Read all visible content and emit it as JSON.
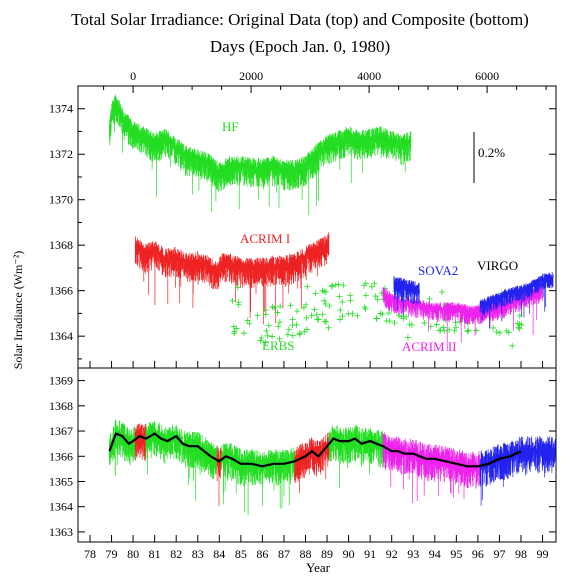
{
  "title_line1": "Total Solar Irradiance: Original Data (top) and Composite (bottom)",
  "title_line2": "Days (Epoch Jan. 0, 1980)",
  "chart_data": [
    {
      "type": "line",
      "panel": "top",
      "ylabel": "Solar Irradiance (Wm⁻²)",
      "ylim": [
        1362.6,
        1375.0
      ],
      "y_ticks": [
        "1374",
        "1372",
        "1370",
        "1368",
        "1366",
        "1364"
      ],
      "y_tick_values": [
        1374,
        1372,
        1370,
        1368,
        1366,
        1364
      ],
      "top_axis_label": "Days (Epoch Jan. 0, 1980)",
      "top_axis_ticks": [
        "0",
        "2000",
        "4000",
        "6000"
      ],
      "top_axis_tick_days": [
        0,
        2000,
        4000,
        6000
      ],
      "scale_bar_label": "0.2%",
      "series": [
        {
          "name": "HF",
          "color": "#22dd22",
          "x": [
            78.9,
            79.0,
            79.2,
            79.5,
            80.0,
            80.5,
            81.0,
            81.5,
            82.0,
            82.5,
            83.0,
            83.5,
            84.0,
            84.5,
            85.0,
            85.5,
            86.0,
            86.5,
            87.0,
            87.5,
            88.0,
            88.5,
            89.0,
            89.5,
            90.0,
            90.5,
            91.0,
            91.5,
            92.0,
            92.5,
            92.9
          ],
          "y": [
            1373.0,
            1373.8,
            1374.3,
            1373.6,
            1373.0,
            1372.8,
            1372.5,
            1372.7,
            1372.3,
            1371.9,
            1371.8,
            1371.6,
            1371.2,
            1371.5,
            1371.5,
            1371.4,
            1371.4,
            1371.5,
            1371.3,
            1371.3,
            1371.5,
            1372.0,
            1372.4,
            1372.6,
            1372.8,
            1372.6,
            1372.7,
            1372.8,
            1372.6,
            1372.4,
            1372.6
          ]
        },
        {
          "name": "ACRIM I",
          "color": "#ee2222",
          "x": [
            80.1,
            80.5,
            81.0,
            81.5,
            82.0,
            82.5,
            83.0,
            83.5,
            83.9,
            84.1,
            84.5,
            85.0,
            85.5,
            86.0,
            86.5,
            87.0,
            87.5,
            88.0,
            88.5,
            89.0,
            89.1
          ],
          "y": [
            1368.0,
            1367.6,
            1367.8,
            1367.4,
            1367.5,
            1367.2,
            1367.3,
            1367.1,
            1366.8,
            1367.2,
            1367.2,
            1367.0,
            1367.0,
            1367.0,
            1367.1,
            1367.1,
            1367.2,
            1367.5,
            1367.8,
            1368.0,
            1368.2
          ]
        },
        {
          "name": "ERBS",
          "color": "#22dd22",
          "marker": "+",
          "x": [
            84.5,
            85.0,
            85.5,
            86.0,
            86.5,
            87.0,
            87.5,
            88.0,
            88.5,
            89.0,
            89.5,
            90.0,
            90.5,
            91.0,
            91.5,
            92.0,
            92.5,
            93.0,
            93.5,
            94.0,
            94.5,
            95.0,
            95.5,
            96.0,
            96.5,
            97.0,
            97.5,
            98.0,
            98.5
          ],
          "y": [
            1364.9,
            1364.7,
            1364.5,
            1364.5,
            1364.5,
            1364.6,
            1364.7,
            1365.0,
            1365.3,
            1365.4,
            1365.5,
            1365.6,
            1365.7,
            1365.6,
            1365.5,
            1365.3,
            1365.2,
            1365.1,
            1365.0,
            1364.9,
            1364.8,
            1364.8,
            1364.8,
            1364.8,
            1364.8,
            1364.9,
            1364.9,
            1365.0,
            1365.2
          ]
        },
        {
          "name": "ACRIM II",
          "color": "#ee22ee",
          "x": [
            91.6,
            92.0,
            92.5,
            93.0,
            93.5,
            94.0,
            94.5,
            95.0,
            95.5,
            96.0,
            96.5,
            97.0,
            97.5,
            98.0,
            98.5,
            99.0
          ],
          "y": [
            1365.9,
            1365.6,
            1365.5,
            1365.4,
            1365.3,
            1365.2,
            1365.2,
            1365.2,
            1365.1,
            1365.1,
            1365.2,
            1365.3,
            1365.5,
            1365.7,
            1365.9,
            1366.1
          ]
        },
        {
          "name": "SOVA2",
          "color": "#2222ee",
          "x": [
            92.1,
            92.5,
            93.0,
            93.3
          ],
          "y": [
            1366.3,
            1366.2,
            1366.1,
            1366.0
          ]
        },
        {
          "name": "VIRGO",
          "color": "#2222ee",
          "x": [
            96.1,
            96.5,
            97.0,
            97.5,
            98.0,
            98.5,
            99.0,
            99.5
          ],
          "y": [
            1365.4,
            1365.5,
            1365.7,
            1365.9,
            1366.0,
            1366.2,
            1366.5,
            1366.6
          ]
        }
      ]
    },
    {
      "type": "line",
      "panel": "bottom",
      "xlabel": "Year",
      "ylim": [
        1362.6,
        1369.5
      ],
      "x_ticks": [
        "78",
        "79",
        "80",
        "81",
        "82",
        "83",
        "84",
        "85",
        "86",
        "87",
        "88",
        "89",
        "90",
        "91",
        "92",
        "93",
        "94",
        "95",
        "96",
        "97",
        "98",
        "99"
      ],
      "y_ticks": [
        "1369",
        "1368",
        "1367",
        "1366",
        "1365",
        "1364",
        "1363"
      ],
      "y_tick_values": [
        1369,
        1368,
        1367,
        1366,
        1365,
        1364,
        1363
      ],
      "segments": [
        {
          "from": 78.9,
          "to": 80.1,
          "color": "#22dd22"
        },
        {
          "from": 80.1,
          "to": 80.6,
          "color": "#ee2222"
        },
        {
          "from": 80.6,
          "to": 83.9,
          "color": "#22dd22"
        },
        {
          "from": 83.9,
          "to": 84.1,
          "color": "#ee2222"
        },
        {
          "from": 84.1,
          "to": 87.5,
          "color": "#22dd22"
        },
        {
          "from": 87.5,
          "to": 89.1,
          "color": "#ee2222"
        },
        {
          "from": 89.1,
          "to": 91.6,
          "color": "#22dd22"
        },
        {
          "from": 91.6,
          "to": 96.1,
          "color": "#ee22ee"
        },
        {
          "from": 96.1,
          "to": 99.6,
          "color": "#2222ee"
        }
      ],
      "composite": {
        "color": "#000000",
        "x": [
          78.9,
          79.2,
          79.5,
          79.8,
          80.0,
          80.3,
          80.6,
          81.0,
          81.3,
          81.6,
          82.0,
          82.3,
          82.6,
          83.0,
          83.3,
          83.6,
          84.0,
          84.3,
          84.6,
          85.0,
          85.5,
          86.0,
          86.5,
          87.0,
          87.5,
          88.0,
          88.3,
          88.6,
          89.0,
          89.3,
          89.6,
          90.0,
          90.3,
          90.6,
          91.0,
          91.3,
          91.6,
          92.0,
          92.3,
          92.6,
          93.0,
          93.3,
          93.6,
          94.0,
          94.5,
          95.0,
          95.5,
          96.0,
          96.5,
          97.0,
          97.5,
          98.0
        ],
        "y": [
          1366.2,
          1366.9,
          1366.8,
          1366.5,
          1366.6,
          1366.8,
          1366.7,
          1366.9,
          1366.7,
          1366.6,
          1366.8,
          1366.5,
          1366.4,
          1366.4,
          1366.2,
          1366.0,
          1365.8,
          1366.0,
          1365.9,
          1365.7,
          1365.7,
          1365.6,
          1365.7,
          1365.7,
          1365.8,
          1366.0,
          1366.2,
          1366.0,
          1366.4,
          1366.7,
          1366.6,
          1366.6,
          1366.7,
          1366.5,
          1366.6,
          1366.5,
          1366.4,
          1366.2,
          1366.2,
          1366.1,
          1366.1,
          1366.0,
          1365.9,
          1365.9,
          1365.8,
          1365.7,
          1365.6,
          1365.6,
          1365.7,
          1365.9,
          1366.0,
          1366.2
        ]
      }
    }
  ],
  "annotations": [
    {
      "text": "HF",
      "color": "#22dd22"
    },
    {
      "text": "ACRIM I",
      "color": "#ee2222"
    },
    {
      "text": "ERBS",
      "color": "#22dd22"
    },
    {
      "text": "SOVA2",
      "color": "#2222ee"
    },
    {
      "text": "VIRGO",
      "color": "#000000"
    },
    {
      "text": "ACRIM II",
      "color": "#ee22ee"
    }
  ]
}
